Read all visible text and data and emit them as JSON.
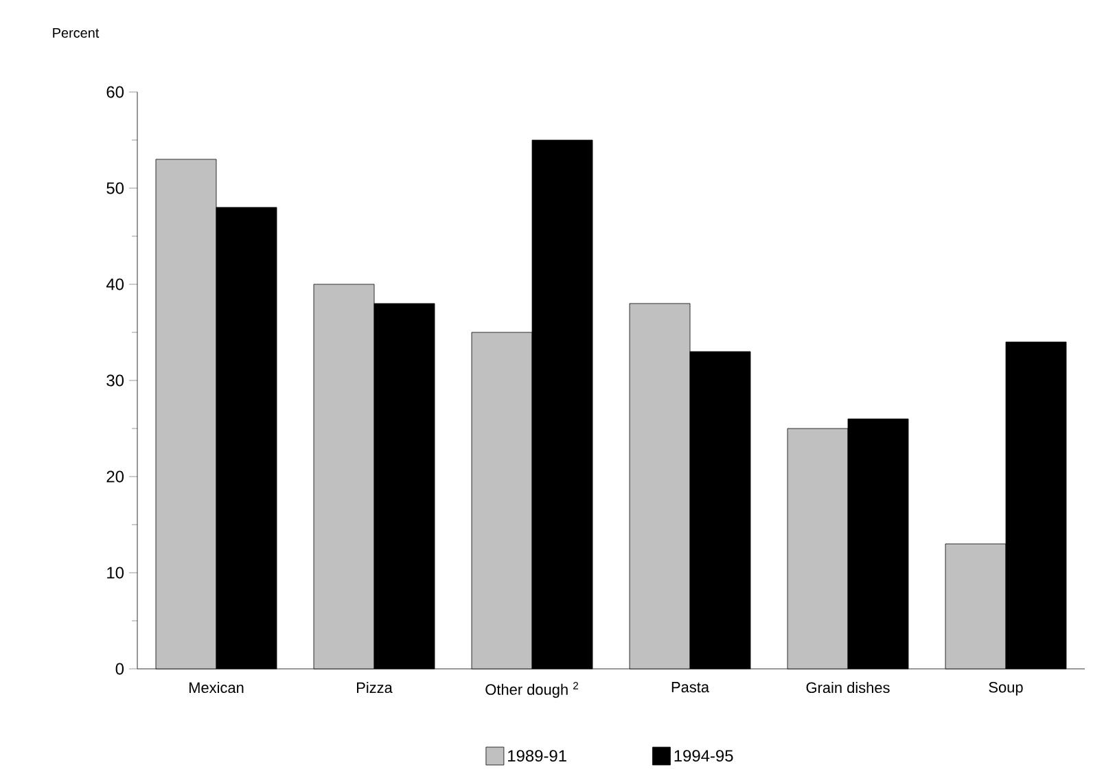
{
  "chart_data": {
    "type": "bar",
    "ylabel": "Percent",
    "categories": [
      "Mexican",
      "Pizza",
      "Other dough $^{2}$",
      "Pasta",
      "Grain dishes",
      "Soup"
    ],
    "series": [
      {
        "name": "1989-91",
        "color": "#c0c0c0",
        "values": [
          53,
          40,
          35,
          38,
          25,
          13
        ]
      },
      {
        "name": "1994-95",
        "color": "#000000",
        "values": [
          48,
          38,
          55,
          33,
          26,
          34
        ]
      }
    ],
    "ylim": [
      0,
      60
    ],
    "yticks": [
      0,
      10,
      20,
      30,
      40,
      50,
      60
    ],
    "grid": false,
    "legend": "bottom"
  }
}
